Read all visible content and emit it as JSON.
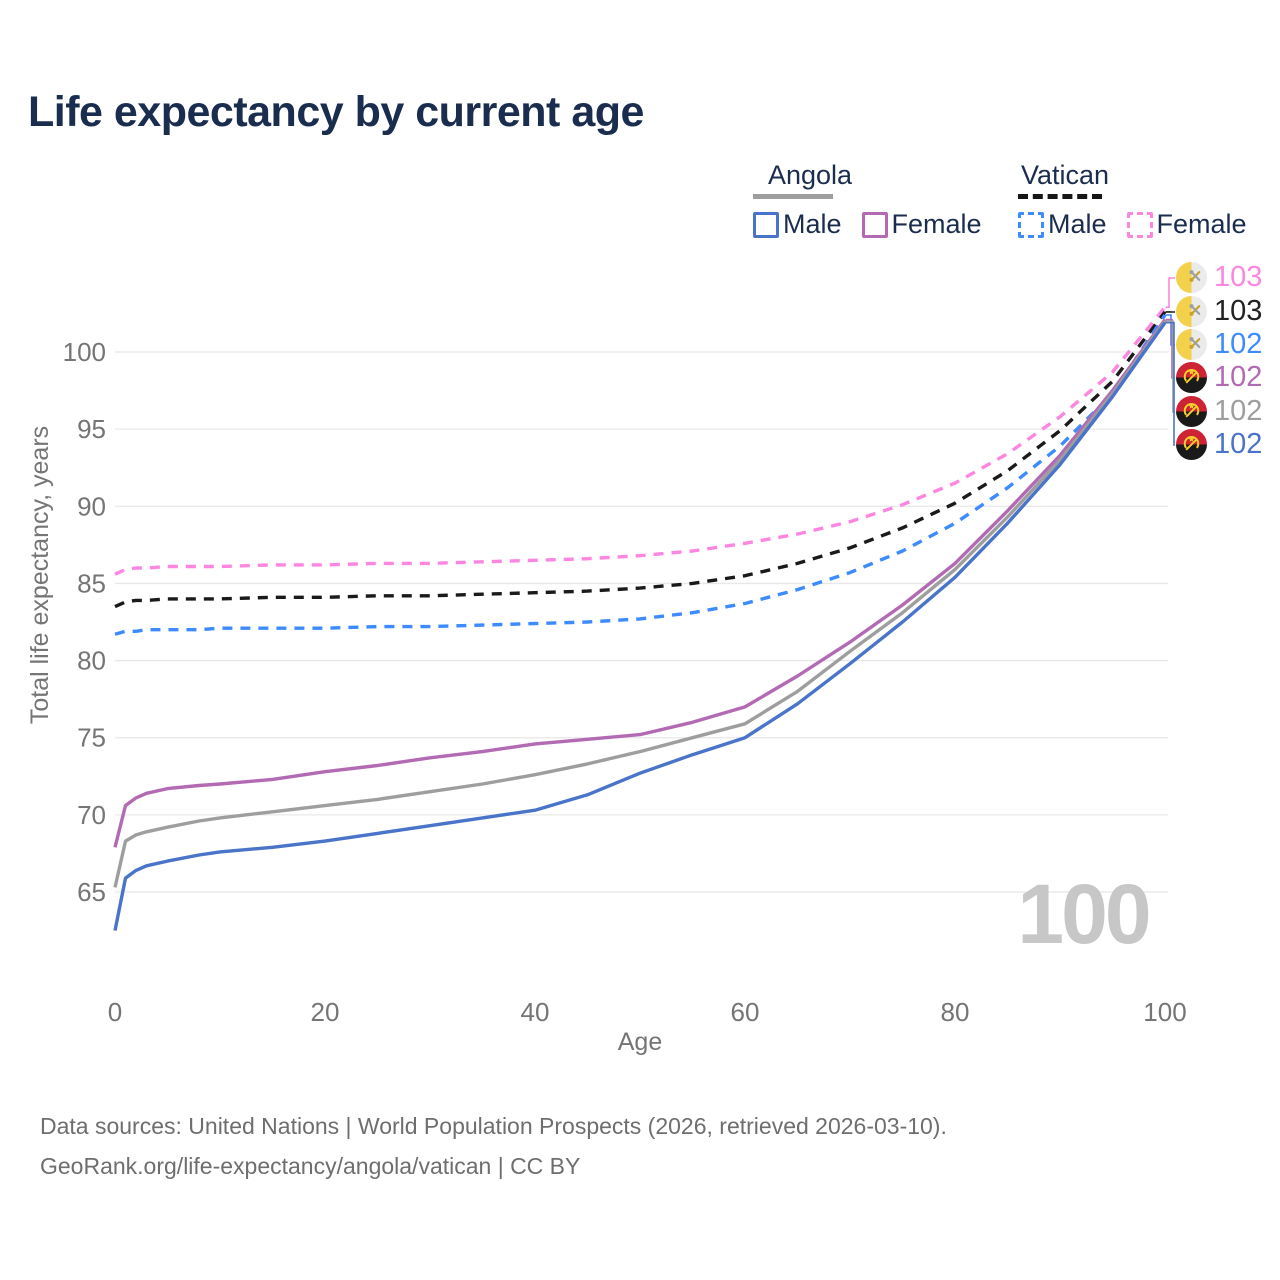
{
  "title": "Life expectancy by current age",
  "watermark": "100",
  "legend": {
    "groups": [
      {
        "country": "Angola",
        "line_style": "solid",
        "underline_color": "#9e9e9e",
        "items": [
          {
            "label": "Male",
            "color": "#4a74c9",
            "dashed": false
          },
          {
            "label": "Female",
            "color": "#b26bb2",
            "dashed": false
          }
        ]
      },
      {
        "country": "Vatican",
        "line_style": "dashed",
        "underline_color": "#161616",
        "items": [
          {
            "label": "Male",
            "color": "#3d8bfd",
            "dashed": true
          },
          {
            "label": "Female",
            "color": "#fc86e0",
            "dashed": true
          }
        ]
      }
    ]
  },
  "footer": {
    "line1": "Data sources: United Nations | World Population Prospects (2026, retrieved 2026-03-10).",
    "line2": "GeoRank.org/life-expectancy/angola/vatican | CC BY"
  },
  "chart_data": {
    "type": "line",
    "title": "Life expectancy by current age",
    "xlabel": "Age",
    "ylabel": "Total life expectancy, years",
    "xlim": [
      0,
      100
    ],
    "ylim": [
      62,
      104
    ],
    "xticks": [
      0,
      20,
      40,
      60,
      80,
      100
    ],
    "yticks": [
      65,
      70,
      75,
      80,
      85,
      90,
      95,
      100
    ],
    "grid": "horizontal",
    "legend_position": "top-right",
    "x": [
      0,
      1,
      2,
      3,
      5,
      8,
      10,
      15,
      20,
      25,
      30,
      35,
      40,
      45,
      50,
      55,
      60,
      65,
      70,
      75,
      80,
      85,
      90,
      95,
      100
    ],
    "series": [
      {
        "name": "Vatican Female",
        "color": "#fc86e0",
        "dashed": true,
        "flag": "vatican",
        "end_label": "103",
        "end_label_color": "#fc86e0",
        "values": [
          85.6,
          85.9,
          86.0,
          86.0,
          86.1,
          86.1,
          86.1,
          86.2,
          86.2,
          86.3,
          86.3,
          86.4,
          86.5,
          86.6,
          86.8,
          87.1,
          87.6,
          88.2,
          89.0,
          90.1,
          91.5,
          93.4,
          95.8,
          98.7,
          102.9
        ]
      },
      {
        "name": "Vatican Both sexes",
        "color": "#1a1a1a",
        "dashed": true,
        "flag": "vatican",
        "end_label": "103",
        "end_label_color": "#222222",
        "values": [
          83.5,
          83.8,
          83.9,
          83.9,
          84.0,
          84.0,
          84.0,
          84.1,
          84.1,
          84.2,
          84.2,
          84.3,
          84.4,
          84.5,
          84.7,
          85.0,
          85.5,
          86.3,
          87.3,
          88.6,
          90.2,
          92.3,
          94.9,
          98.1,
          102.6
        ]
      },
      {
        "name": "Vatican Male",
        "color": "#3d8bfd",
        "dashed": true,
        "flag": "vatican",
        "end_label": "102",
        "end_label_color": "#3d8bfd",
        "values": [
          81.7,
          81.9,
          81.9,
          82.0,
          82.0,
          82.0,
          82.1,
          82.1,
          82.1,
          82.2,
          82.2,
          82.3,
          82.4,
          82.5,
          82.7,
          83.1,
          83.7,
          84.6,
          85.7,
          87.1,
          88.9,
          91.2,
          93.9,
          97.3,
          102.4
        ]
      },
      {
        "name": "Angola Female",
        "color": "#b26bb2",
        "dashed": false,
        "flag": "angola",
        "end_label": "102",
        "end_label_color": "#b26bb2",
        "values": [
          67.9,
          70.6,
          71.1,
          71.4,
          71.7,
          71.9,
          72.0,
          72.3,
          72.8,
          73.2,
          73.7,
          74.1,
          74.6,
          74.9,
          75.2,
          76.0,
          77.0,
          79.0,
          81.2,
          83.6,
          86.3,
          89.7,
          93.3,
          97.5,
          102.1
        ]
      },
      {
        "name": "Angola Both sexes",
        "color": "#9e9e9e",
        "dashed": false,
        "flag": "angola",
        "end_label": "102",
        "end_label_color": "#9e9e9e",
        "values": [
          65.3,
          68.3,
          68.7,
          68.9,
          69.2,
          69.6,
          69.8,
          70.2,
          70.6,
          71.0,
          71.5,
          72.0,
          72.6,
          73.3,
          74.1,
          75.0,
          75.9,
          78.0,
          80.6,
          83.1,
          85.9,
          89.3,
          93.0,
          97.3,
          102.0
        ]
      },
      {
        "name": "Angola Male",
        "color": "#4a74c9",
        "dashed": false,
        "flag": "angola",
        "end_label": "102",
        "end_label_color": "#4a74c9",
        "values": [
          62.5,
          65.9,
          66.4,
          66.7,
          67.0,
          67.4,
          67.6,
          67.9,
          68.3,
          68.8,
          69.3,
          69.8,
          70.3,
          71.3,
          72.7,
          73.9,
          75.0,
          77.2,
          79.8,
          82.5,
          85.4,
          88.9,
          92.7,
          97.1,
          101.9
        ]
      }
    ],
    "colors": {
      "grid": "#e8e8e8",
      "axis_text": "#757575",
      "title_text": "#1b2d4f",
      "watermark": "#c7c7c7",
      "footer_text": "#6e6e6e"
    }
  }
}
